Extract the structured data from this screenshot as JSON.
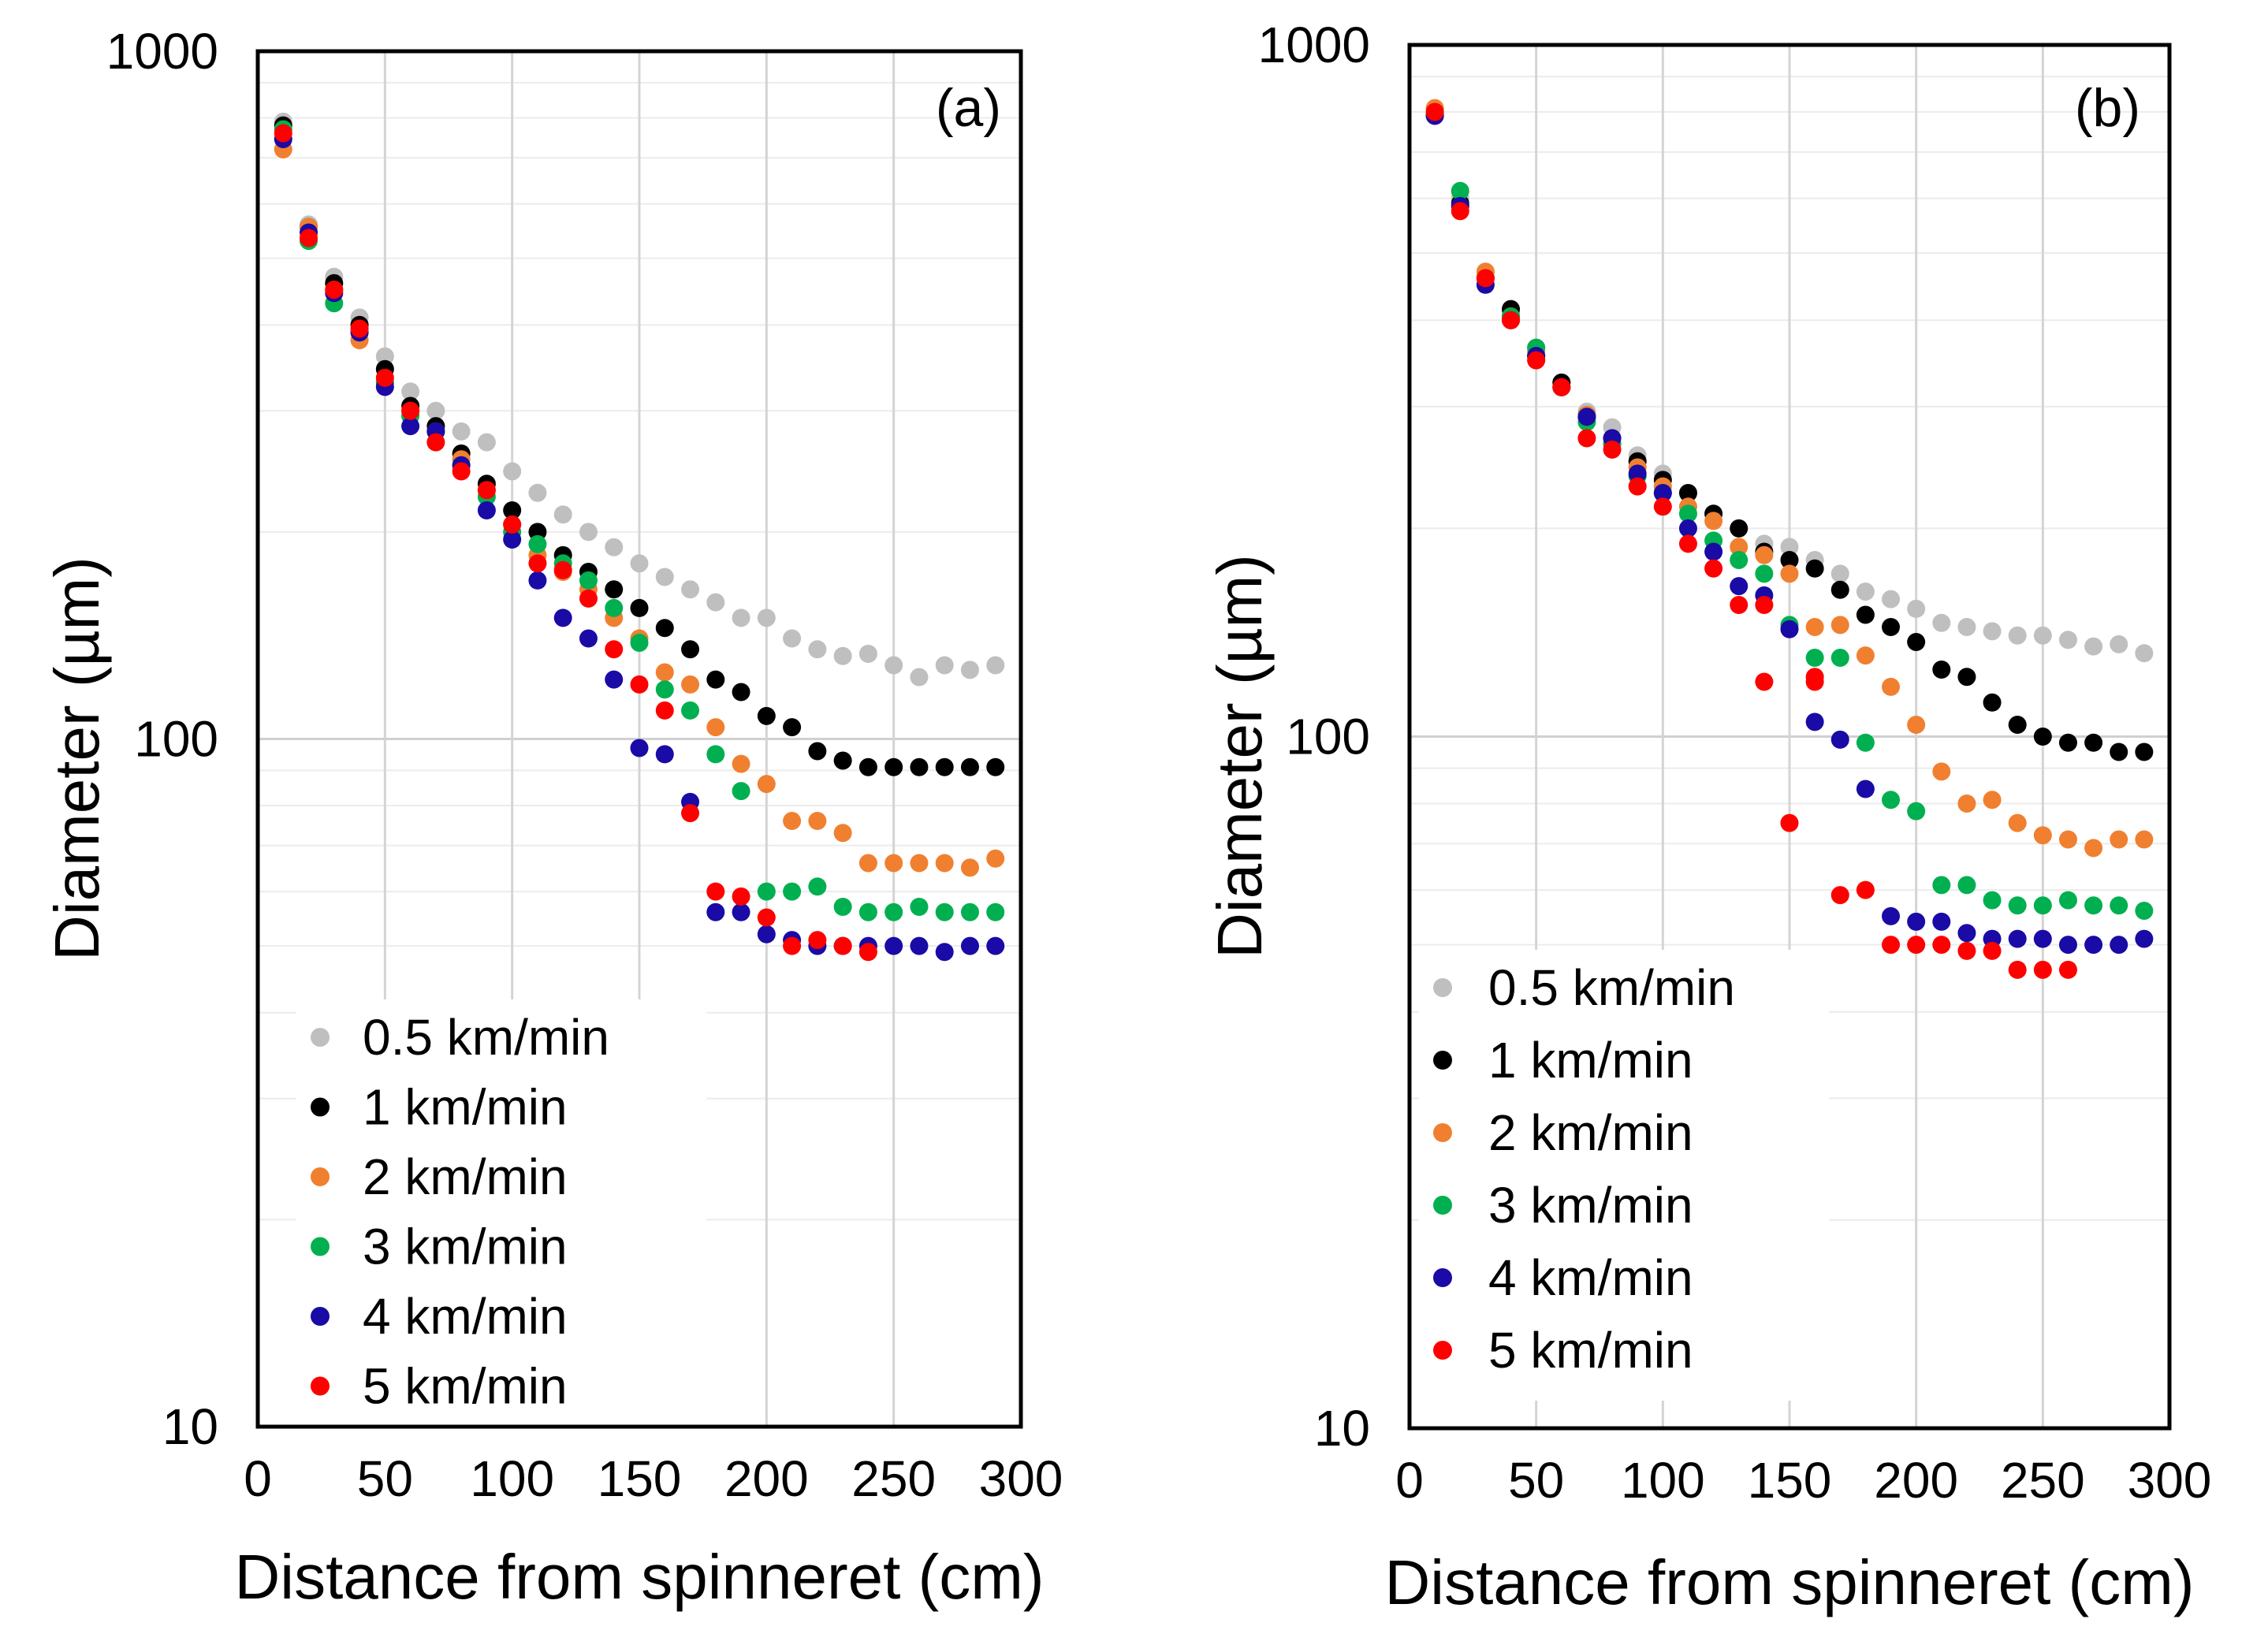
{
  "chart_data": [
    {
      "type": "scatter",
      "panel_label": "(a)",
      "title": "",
      "xlabel": "Distance from spinneret (cm)",
      "ylabel": "Diameter (µm)",
      "xlim": [
        0,
        300
      ],
      "ylim": [
        10,
        1000
      ],
      "yscale": "log",
      "grid": true,
      "x_ticks": [
        "0",
        "50",
        "100",
        "150",
        "200",
        "250",
        "300"
      ],
      "y_ticks": [
        "10",
        "100",
        "1000"
      ],
      "legend_position": "bottom-left",
      "series": [
        {
          "name": "0.5 km/min",
          "color": "#bfbfbf",
          "x": [
            10,
            20,
            30,
            40,
            50,
            60,
            70,
            80,
            90,
            100,
            110,
            120,
            130,
            140,
            150,
            160,
            170,
            180,
            190,
            200,
            210,
            220,
            230,
            240,
            250,
            260,
            270,
            280,
            290
          ],
          "y": [
            790,
            560,
            470,
            410,
            360,
            320,
            300,
            280,
            270,
            245,
            228,
            212,
            200,
            190,
            180,
            172,
            165,
            158,
            150,
            150,
            140,
            135,
            132,
            133,
            128,
            123,
            128,
            126,
            128
          ]
        },
        {
          "name": "1 km/min",
          "color": "#000000",
          "x": [
            10,
            20,
            30,
            40,
            50,
            60,
            70,
            80,
            90,
            100,
            110,
            120,
            130,
            140,
            150,
            160,
            170,
            180,
            190,
            200,
            210,
            220,
            230,
            240,
            250,
            260,
            270,
            280,
            290
          ],
          "y": [
            780,
            555,
            460,
            400,
            345,
            305,
            285,
            260,
            235,
            215,
            200,
            185,
            175,
            165,
            155,
            145,
            135,
            122,
            117,
            108,
            104,
            96,
            93,
            91,
            91,
            91,
            91,
            91,
            91
          ]
        },
        {
          "name": "2 km/min",
          "color": "#f08030",
          "x": [
            10,
            20,
            30,
            40,
            50,
            60,
            70,
            80,
            90,
            100,
            110,
            120,
            130,
            140,
            150,
            160,
            170,
            180,
            190,
            200,
            210,
            220,
            230,
            240,
            250,
            260,
            270,
            280,
            290
          ],
          "y": [
            720,
            555,
            450,
            380,
            330,
            300,
            280,
            255,
            230,
            205,
            185,
            175,
            165,
            150,
            140,
            125,
            120,
            104,
            92,
            86,
            76,
            76,
            73,
            66,
            66,
            66,
            66,
            65,
            67
          ]
        },
        {
          "name": "3 km/min",
          "color": "#00b050",
          "x": [
            10,
            20,
            30,
            40,
            50,
            60,
            70,
            80,
            90,
            100,
            110,
            120,
            130,
            140,
            150,
            160,
            170,
            180,
            190,
            200,
            210,
            220,
            230,
            240,
            250,
            260,
            270,
            280,
            290
          ],
          "y": [
            770,
            530,
            430,
            390,
            330,
            295,
            280,
            250,
            225,
            200,
            192,
            180,
            170,
            155,
            138,
            118,
            110,
            95,
            84,
            60,
            60,
            61,
            57,
            56,
            56,
            57,
            56,
            56,
            56
          ]
        },
        {
          "name": "4 km/min",
          "color": "#1a0aa6",
          "x": [
            10,
            20,
            30,
            40,
            50,
            60,
            70,
            80,
            90,
            100,
            110,
            120,
            130,
            140,
            150,
            160,
            170,
            180,
            190,
            200,
            210,
            220,
            230,
            240,
            250,
            260,
            270,
            280,
            290
          ],
          "y": [
            745,
            545,
            445,
            390,
            325,
            285,
            280,
            250,
            215,
            195,
            170,
            150,
            140,
            122,
            97,
            95,
            81,
            56,
            56,
            52,
            51,
            50,
            50,
            50,
            50,
            50,
            49,
            50,
            50
          ]
        },
        {
          "name": "5 km/min",
          "color": "#ff0000",
          "x": [
            10,
            20,
            30,
            40,
            50,
            60,
            70,
            80,
            90,
            100,
            110,
            120,
            130,
            140,
            150,
            160,
            170,
            180,
            190,
            200
          ],
          "y": [
            760,
            535,
            450,
            395,
            335,
            300,
            270,
            245,
            230,
            205,
            180,
            176,
            160,
            135,
            120,
            110,
            78,
            60,
            59,
            55
          ]
        },
        {
          "name": "5 km/min",
          "color": "#ff0000",
          "legend": false,
          "x": [
            210,
            220,
            230,
            240
          ],
          "y": [
            50,
            51,
            50,
            49
          ]
        }
      ]
    },
    {
      "type": "scatter",
      "panel_label": "(b)",
      "title": "",
      "xlabel": "Distance from spinneret (cm)",
      "ylabel": "Diameter (µm)",
      "xlim": [
        0,
        300
      ],
      "ylim": [
        10,
        1000
      ],
      "yscale": "log",
      "grid": true,
      "x_ticks": [
        "0",
        "50",
        "100",
        "150",
        "200",
        "250",
        "300"
      ],
      "y_ticks": [
        "10",
        "100",
        "1000"
      ],
      "legend_position": "middle-left",
      "series": [
        {
          "name": "0.5 km/min",
          "color": "#bfbfbf",
          "x": [
            10,
            20,
            30,
            40,
            50,
            60,
            70,
            80,
            90,
            100,
            110,
            120,
            130,
            140,
            150,
            160,
            170,
            180,
            190,
            200,
            210,
            220,
            230,
            240,
            250,
            260,
            270,
            280,
            290
          ],
          "y": [
            810,
            600,
            470,
            410,
            365,
            325,
            295,
            280,
            255,
            240,
            225,
            210,
            200,
            190,
            188,
            180,
            172,
            162,
            158,
            153,
            146,
            144,
            142,
            140,
            140,
            138,
            135,
            136,
            132
          ]
        },
        {
          "name": "1 km/min",
          "color": "#000000",
          "x": [
            10,
            20,
            30,
            40,
            50,
            60,
            70,
            80,
            90,
            100,
            110,
            120,
            130,
            140,
            150,
            160,
            170,
            180,
            190,
            200,
            210,
            220,
            230,
            240,
            250,
            260,
            270,
            280,
            290
          ],
          "y": [
            790,
            590,
            460,
            415,
            355,
            325,
            290,
            270,
            250,
            235,
            225,
            210,
            200,
            185,
            180,
            175,
            163,
            150,
            144,
            137,
            125,
            122,
            112,
            104,
            100,
            98,
            98,
            95,
            95
          ]
        },
        {
          "name": "2 km/min",
          "color": "#f08030",
          "x": [
            10,
            20,
            30,
            40,
            50,
            60,
            70,
            80,
            90,
            100,
            110,
            120,
            130,
            140,
            150,
            160,
            170,
            180,
            190,
            200,
            210,
            220,
            230,
            240,
            250,
            260,
            270,
            280,
            290
          ],
          "y": [
            810,
            585,
            470,
            405,
            360,
            320,
            292,
            265,
            245,
            230,
            215,
            205,
            188,
            183,
            172,
            144,
            145,
            131,
            118,
            104,
            89,
            80,
            81,
            75,
            72,
            71,
            69,
            71,
            71
          ]
        },
        {
          "name": "3 km/min",
          "color": "#00b050",
          "x": [
            10,
            20,
            30,
            40,
            50,
            60,
            70,
            80,
            90,
            100,
            110,
            120,
            130,
            140,
            150,
            160,
            170,
            180,
            190,
            200,
            210,
            220,
            230,
            240,
            250,
            260,
            270,
            280,
            290
          ],
          "y": [
            795,
            615,
            460,
            405,
            365,
            320,
            285,
            265,
            238,
            225,
            210,
            192,
            180,
            172,
            145,
            130,
            130,
            98,
            81,
            78,
            61,
            61,
            58,
            57,
            57,
            58,
            57,
            57,
            56
          ]
        },
        {
          "name": "4 km/min",
          "color": "#1a0aa6",
          "x": [
            10,
            20,
            30,
            40,
            50,
            60,
            70,
            80,
            90,
            100,
            110,
            120,
            130,
            140,
            150,
            160,
            170,
            180,
            190,
            200,
            210,
            220,
            230,
            240,
            250,
            260,
            270,
            280,
            290
          ],
          "y": [
            790,
            585,
            450,
            400,
            355,
            320,
            290,
            270,
            240,
            225,
            200,
            185,
            165,
            160,
            143,
            105,
            99,
            84,
            55,
            54,
            54,
            52,
            51,
            51,
            51,
            50,
            50,
            50,
            51
          ]
        },
        {
          "name": "5 km/min",
          "color": "#ff0000",
          "x": [
            10,
            20,
            30,
            40,
            50,
            60,
            70,
            80,
            90,
            100,
            110,
            120,
            130,
            140,
            150,
            160,
            170,
            180,
            190,
            200,
            210,
            220,
            230,
            240,
            250,
            260
          ],
          "y": [
            800,
            575,
            460,
            400,
            350,
            320,
            270,
            260,
            230,
            215,
            190,
            175,
            155,
            120,
            75,
            120,
            59,
            60,
            50,
            50,
            50,
            49,
            49,
            46,
            46,
            46
          ]
        },
        {
          "name": "5 km/min",
          "color": "#ff0000",
          "legend": false,
          "x": [
            140,
            160
          ],
          "y": [
            155,
            122
          ]
        }
      ]
    }
  ]
}
